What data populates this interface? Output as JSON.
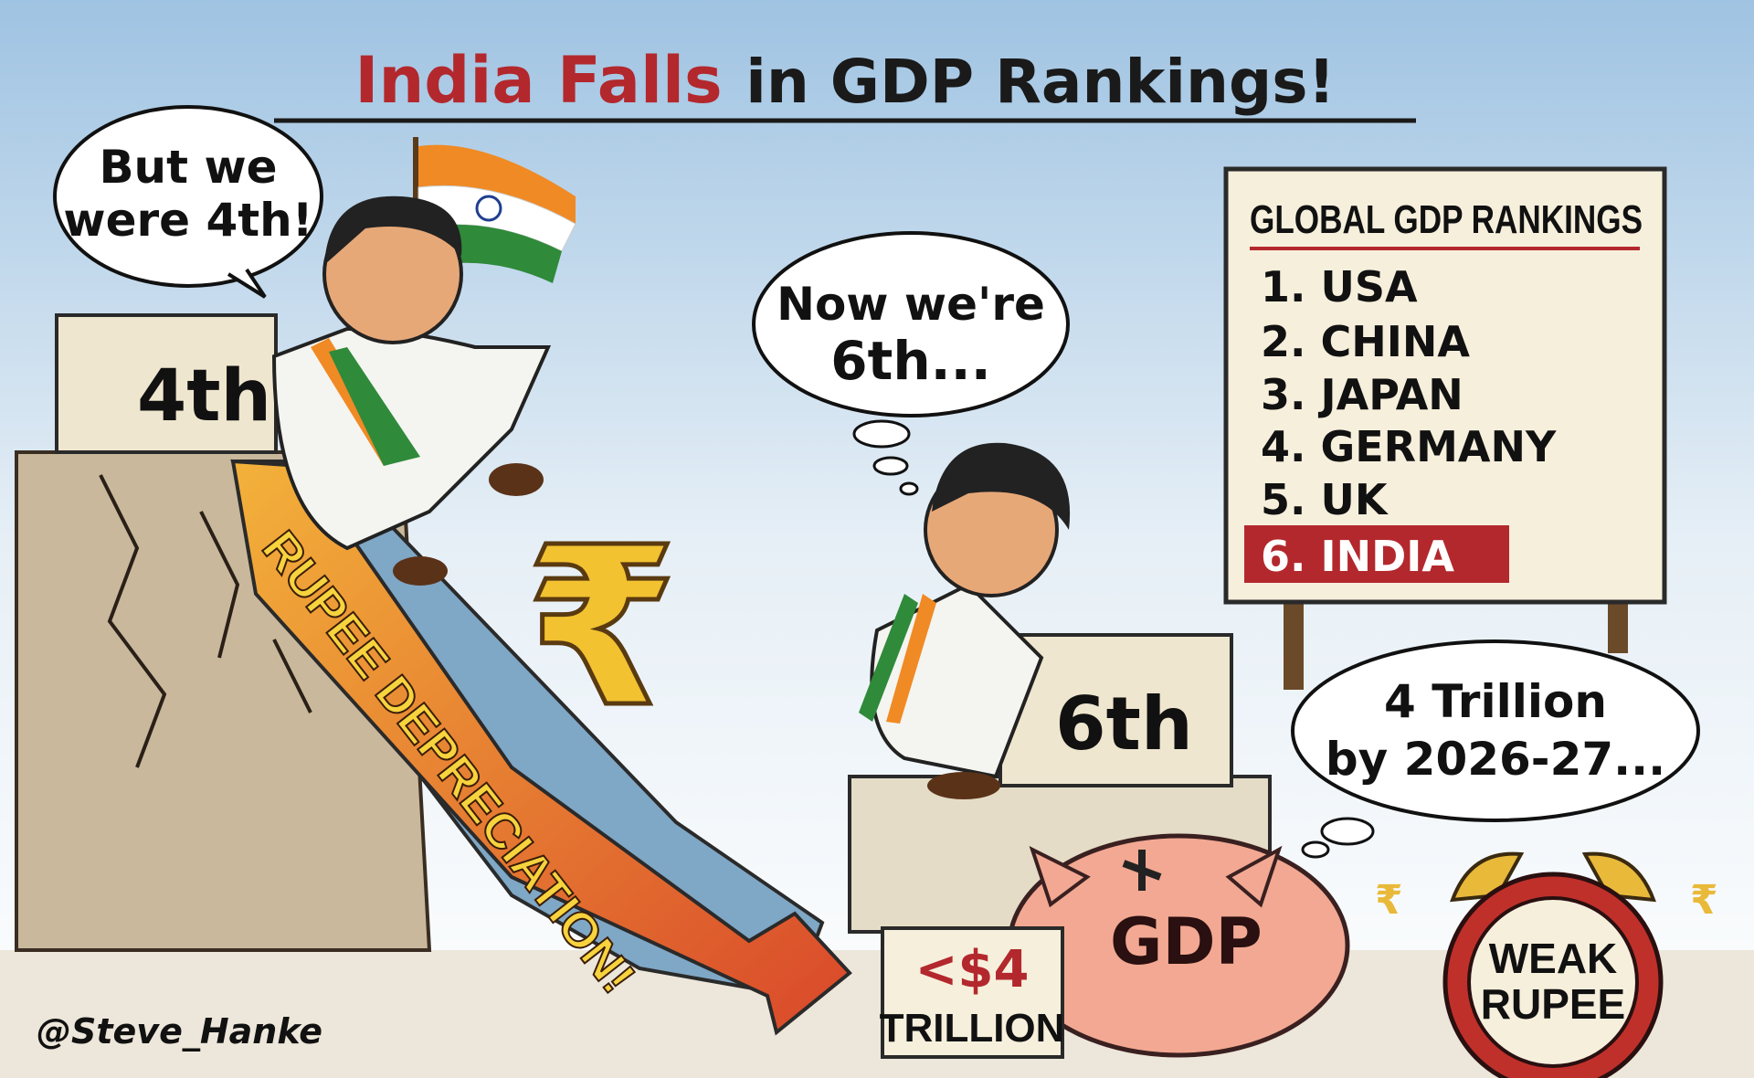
{
  "title": {
    "part1": "India Falls",
    "part2": "in GDP Rankings!"
  },
  "bubble_left": {
    "line1": "But we",
    "line2": "were 4th!"
  },
  "block_4th": "4th",
  "slide_label": "RUPEE DEPRECIATION!",
  "rupee_symbol": "₹",
  "thought_middle": {
    "line1": "Now we're",
    "line2": "6th..."
  },
  "block_6th": "6th",
  "board": {
    "heading": "GLOBAL GDP RANKINGS",
    "items": [
      "1. USA",
      "2. CHINA",
      "3. JAPAN",
      "4. GERMANY",
      "5. UK",
      "6. INDIA"
    ],
    "highlight_color": "#b3282d"
  },
  "thought_right": {
    "line1": "4 Trillion",
    "line2": "by 2026-27..."
  },
  "piggy_label": "GDP",
  "tag": {
    "line1": "<$4",
    "line2": "TRILLION"
  },
  "clock": {
    "line1": "WEAK",
    "line2": "RUPEE"
  },
  "signature": "@Steve_Hanke",
  "colors": {
    "title_red": "#b3282d",
    "saffron": "#f08a24",
    "green": "#2f8a3a",
    "gold": "#f2c230",
    "sky": "#a9c9e4"
  }
}
